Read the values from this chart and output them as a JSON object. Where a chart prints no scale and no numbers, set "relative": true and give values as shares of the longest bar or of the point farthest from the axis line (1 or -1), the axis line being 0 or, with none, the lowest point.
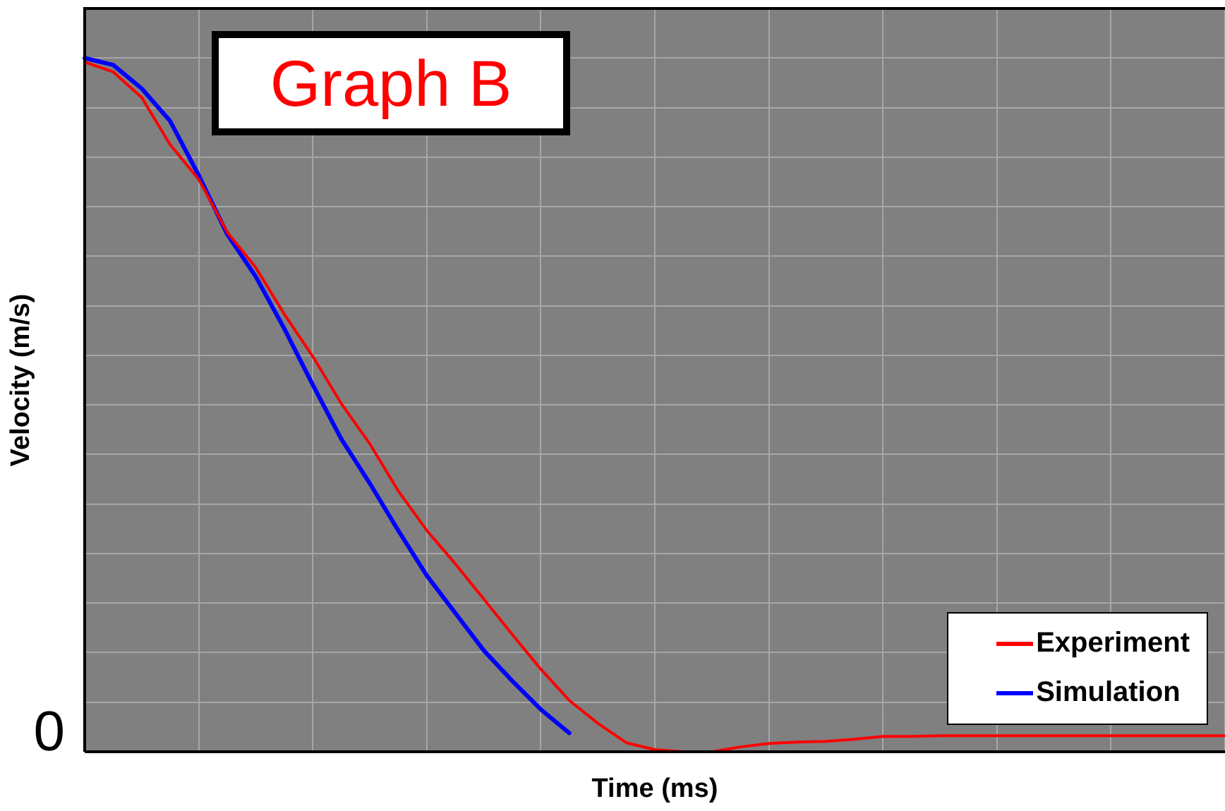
{
  "chart_data": {
    "type": "line",
    "title": "Graph B",
    "xlabel": "Time (ms)",
    "ylabel": "Velocity (m/s)",
    "relative": true,
    "grid": true,
    "legend": "bottom right",
    "marker": "none",
    "line_style": "solid",
    "categories": [
      null,
      null,
      null,
      null,
      null,
      null,
      null,
      null,
      null,
      null,
      null,
      null,
      null,
      null,
      null,
      null,
      null,
      null,
      null,
      null,
      null,
      null,
      null,
      null,
      null,
      null,
      null,
      null,
      null,
      null,
      null,
      null,
      null,
      null,
      null,
      null,
      null,
      null,
      null,
      null,
      null
    ],
    "ref_lines": [
      {
        "axis": "y",
        "value": 0,
        "label": "0",
        "color": "#000000"
      }
    ],
    "series": [
      {
        "name": "Experiment",
        "color": "#ff0000",
        "values": [
          0.994,
          0.98,
          0.943,
          0.875,
          0.825,
          0.749,
          0.698,
          0.631,
          0.57,
          0.502,
          0.444,
          0.376,
          0.319,
          0.271,
          0.22,
          0.169,
          0.119,
          0.074,
          0.041,
          0.013,
          0.003,
          0,
          0,
          0.007,
          0.012,
          0.014,
          0.015,
          0.018,
          0.022,
          0.022,
          0.023,
          0.023,
          0.023,
          0.023,
          0.023,
          0.023,
          0.023,
          0.023,
          0.023,
          0.023,
          0.023
        ]
      },
      {
        "name": "Simulation",
        "color": "#0000ff",
        "values": [
          1,
          0.99,
          0.956,
          0.909,
          0.831,
          0.746,
          0.685,
          0.61,
          0.529,
          0.451,
          0.387,
          0.319,
          0.254,
          0.2,
          0.146,
          0.102,
          0.061,
          0.027,
          null,
          null,
          null,
          null,
          null,
          null,
          null,
          null,
          null,
          null,
          null,
          null,
          null,
          null,
          null,
          null,
          null,
          null,
          null,
          null,
          null,
          null,
          null
        ]
      }
    ]
  }
}
